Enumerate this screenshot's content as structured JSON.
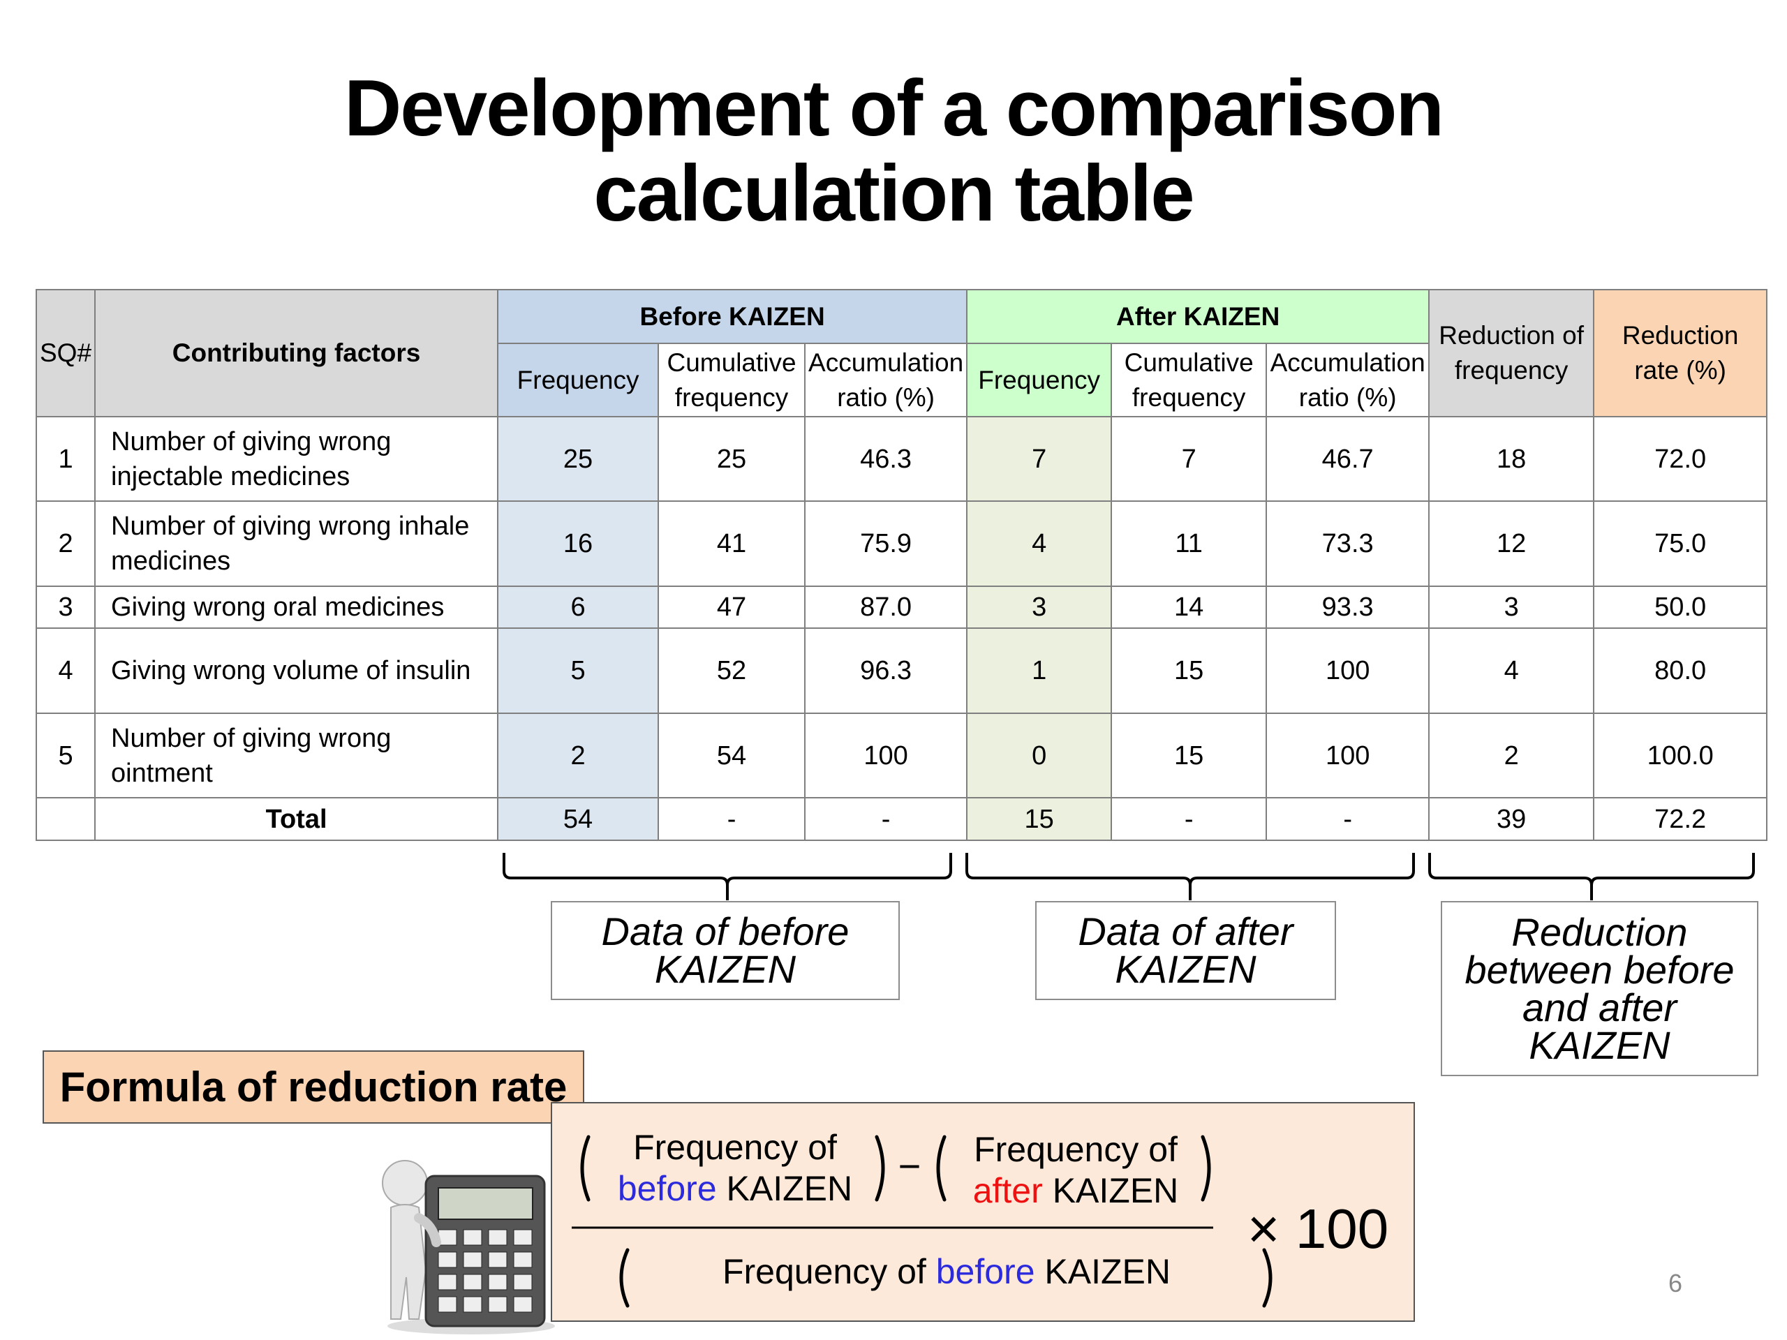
{
  "title": "Development of a comparison calculation table",
  "table": {
    "header": {
      "sq": "SQ#",
      "factors": "Contributing factors",
      "before": "Before KAIZEN",
      "after": "After KAIZEN",
      "reduction": "Reduction of frequency",
      "rate": "Reduction rate (%)",
      "before_columns": [
        "Frequency",
        "Cumulative frequency",
        "Accumulation ratio (%)"
      ],
      "after_columns": [
        "Frequency",
        "Cumulative frequency",
        "Accumulation ratio (%)"
      ]
    },
    "rows": [
      [
        "1",
        "Number of giving wrong injectable medicines",
        "25",
        "25",
        "46.3",
        "7",
        "7",
        "46.7",
        "18",
        "72.0"
      ],
      [
        "2",
        "Number of giving wrong inhale medicines",
        "16",
        "41",
        "75.9",
        "4",
        "11",
        "73.3",
        "12",
        "75.0"
      ],
      [
        "3",
        "Giving wrong oral medicines",
        "6",
        "47",
        "87.0",
        "3",
        "14",
        "93.3",
        "3",
        "50.0"
      ],
      [
        "4",
        "Giving wrong volume of insulin",
        "5",
        "52",
        "96.3",
        "1",
        "15",
        "100",
        "4",
        "80.0"
      ],
      [
        "5",
        "Number of giving wrong ointment",
        "2",
        "54",
        "100",
        "0",
        "15",
        "100",
        "2",
        "100.0"
      ]
    ],
    "total": {
      "label": "Total",
      "values": [
        "54",
        "-",
        "-",
        "15",
        "-",
        "-",
        "39",
        "72.2"
      ]
    }
  },
  "braces": [
    "Data of before KAIZEN",
    "Data of after KAIZEN",
    "Reduction between before and after KAIZEN"
  ],
  "formula": {
    "label": "Formula of reduction rate",
    "numerator": [
      {
        "prefix": "Frequency of",
        "highlight": "before",
        "suffix": "KAIZEN"
      },
      {
        "prefix": "Frequency of",
        "highlight": "after",
        "suffix": "KAIZEN"
      }
    ],
    "operator": "−",
    "denominator": {
      "prefix": "Frequency of",
      "highlight": "before",
      "suffix": "KAIZEN"
    },
    "multiplier": "× 100"
  },
  "page_number": "6"
}
